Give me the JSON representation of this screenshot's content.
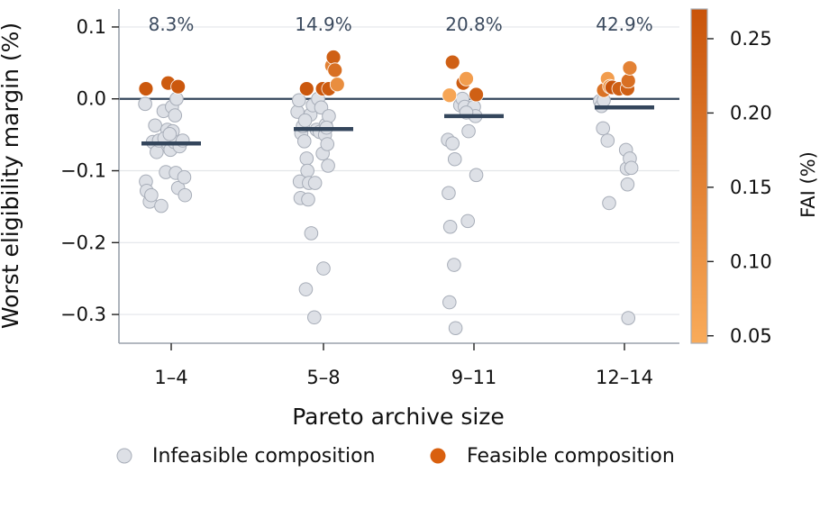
{
  "chart_data": {
    "type": "scatter",
    "xlabel": "Pareto archive size",
    "ylabel": "Worst eligibility margin (%)",
    "categories": [
      "1–4",
      "5–8",
      "9–11",
      "12–14"
    ],
    "ylim": [
      -0.34,
      0.125
    ],
    "yticks": [
      0.1,
      0.0,
      -0.1,
      -0.2,
      -0.3
    ],
    "ytick_labels": [
      "0.1",
      "0.0",
      "−0.1",
      "−0.2",
      "−0.3"
    ],
    "grid": "horizontal",
    "reference_line_y": 0.0,
    "annotations": [
      "8.3%",
      "14.9%",
      "20.8%",
      "42.9%"
    ],
    "medians": [
      -0.062,
      -0.042,
      -0.024,
      -0.012
    ],
    "colorbar": {
      "label": "FAI (%)",
      "range": [
        0.045,
        0.27
      ],
      "ticks": [
        0.25,
        0.2,
        0.15,
        0.1,
        0.05
      ],
      "tick_labels": [
        "0.25",
        "0.20",
        "0.15",
        "0.10",
        "0.05"
      ],
      "color_low": "#f9ab5a",
      "color_high": "#c9540a"
    },
    "legend": {
      "placement": "bottom",
      "items": [
        {
          "label": "Infeasible composition",
          "color": "#dde0e6"
        },
        {
          "label": "Feasible composition",
          "color": "#d9600f"
        }
      ]
    },
    "infeasible": [
      {
        "group": 0,
        "offset": -0.34,
        "y": -0.007
      },
      {
        "group": 0,
        "offset": -0.33,
        "y": -0.115
      },
      {
        "group": 0,
        "offset": -0.32,
        "y": -0.128
      },
      {
        "group": 0,
        "offset": -0.28,
        "y": -0.143
      },
      {
        "group": 0,
        "offset": -0.26,
        "y": -0.134
      },
      {
        "group": 0,
        "offset": -0.24,
        "y": -0.06
      },
      {
        "group": 0,
        "offset": -0.21,
        "y": -0.037
      },
      {
        "group": 0,
        "offset": -0.19,
        "y": -0.074
      },
      {
        "group": 0,
        "offset": -0.16,
        "y": -0.058
      },
      {
        "group": 0,
        "offset": -0.13,
        "y": -0.149
      },
      {
        "group": 0,
        "offset": -0.1,
        "y": -0.017
      },
      {
        "group": 0,
        "offset": -0.07,
        "y": -0.102
      },
      {
        "group": 0,
        "offset": -0.05,
        "y": -0.043
      },
      {
        "group": 0,
        "offset": -0.04,
        "y": -0.062
      },
      {
        "group": 0,
        "offset": -0.01,
        "y": -0.071
      },
      {
        "group": 0,
        "offset": 0.01,
        "y": -0.011
      },
      {
        "group": 0,
        "offset": 0.02,
        "y": -0.045
      },
      {
        "group": 0,
        "offset": 0.04,
        "y": -0.06
      },
      {
        "group": 0,
        "offset": 0.05,
        "y": -0.023
      },
      {
        "group": 0,
        "offset": 0.06,
        "y": -0.103
      },
      {
        "group": 0,
        "offset": 0.07,
        "y": 0.0
      },
      {
        "group": 0,
        "offset": 0.09,
        "y": -0.124
      },
      {
        "group": 0,
        "offset": 0.11,
        "y": -0.066
      },
      {
        "group": 0,
        "offset": 0.15,
        "y": -0.058
      },
      {
        "group": 0,
        "offset": 0.17,
        "y": -0.109
      },
      {
        "group": 0,
        "offset": 0.18,
        "y": -0.134
      },
      {
        "group": 0,
        "offset": -0.09,
        "y": -0.055
      },
      {
        "group": 0,
        "offset": -0.02,
        "y": -0.049
      },
      {
        "group": 1,
        "offset": -0.34,
        "y": -0.018
      },
      {
        "group": 1,
        "offset": -0.32,
        "y": -0.002
      },
      {
        "group": 1,
        "offset": -0.31,
        "y": -0.115
      },
      {
        "group": 1,
        "offset": -0.3,
        "y": -0.138
      },
      {
        "group": 1,
        "offset": -0.29,
        "y": -0.048
      },
      {
        "group": 1,
        "offset": -0.27,
        "y": -0.038
      },
      {
        "group": 1,
        "offset": -0.25,
        "y": -0.059
      },
      {
        "group": 1,
        "offset": -0.23,
        "y": -0.265
      },
      {
        "group": 1,
        "offset": -0.22,
        "y": -0.083
      },
      {
        "group": 1,
        "offset": -0.21,
        "y": -0.1
      },
      {
        "group": 1,
        "offset": -0.2,
        "y": -0.14
      },
      {
        "group": 1,
        "offset": -0.19,
        "y": -0.117
      },
      {
        "group": 1,
        "offset": -0.17,
        "y": -0.022
      },
      {
        "group": 1,
        "offset": -0.16,
        "y": -0.187
      },
      {
        "group": 1,
        "offset": -0.14,
        "y": -0.009
      },
      {
        "group": 1,
        "offset": -0.12,
        "y": -0.304
      },
      {
        "group": 1,
        "offset": -0.11,
        "y": -0.117
      },
      {
        "group": 1,
        "offset": -0.09,
        "y": -0.043
      },
      {
        "group": 1,
        "offset": -0.07,
        "y": 0.0
      },
      {
        "group": 1,
        "offset": -0.05,
        "y": -0.046
      },
      {
        "group": 1,
        "offset": -0.03,
        "y": -0.012
      },
      {
        "group": 1,
        "offset": -0.01,
        "y": -0.076
      },
      {
        "group": 1,
        "offset": 0.0,
        "y": -0.236
      },
      {
        "group": 1,
        "offset": 0.02,
        "y": -0.05
      },
      {
        "group": 1,
        "offset": 0.03,
        "y": -0.036
      },
      {
        "group": 1,
        "offset": 0.05,
        "y": -0.063
      },
      {
        "group": 1,
        "offset": 0.06,
        "y": -0.093
      },
      {
        "group": 1,
        "offset": 0.07,
        "y": -0.024
      },
      {
        "group": 1,
        "offset": 0.04,
        "y": -0.04
      },
      {
        "group": 1,
        "offset": -0.24,
        "y": -0.03
      },
      {
        "group": 2,
        "offset": -0.34,
        "y": -0.057
      },
      {
        "group": 2,
        "offset": -0.33,
        "y": -0.131
      },
      {
        "group": 2,
        "offset": -0.32,
        "y": -0.283
      },
      {
        "group": 2,
        "offset": -0.31,
        "y": -0.178
      },
      {
        "group": 2,
        "offset": -0.28,
        "y": -0.062
      },
      {
        "group": 2,
        "offset": -0.26,
        "y": -0.231
      },
      {
        "group": 2,
        "offset": -0.25,
        "y": -0.084
      },
      {
        "group": 2,
        "offset": -0.24,
        "y": -0.319
      },
      {
        "group": 2,
        "offset": -0.18,
        "y": -0.009
      },
      {
        "group": 2,
        "offset": -0.15,
        "y": 0.0
      },
      {
        "group": 2,
        "offset": -0.12,
        "y": -0.011
      },
      {
        "group": 2,
        "offset": -0.08,
        "y": -0.17
      },
      {
        "group": 2,
        "offset": -0.07,
        "y": -0.045
      },
      {
        "group": 2,
        "offset": -0.02,
        "y": -0.02
      },
      {
        "group": 2,
        "offset": 0.0,
        "y": -0.011
      },
      {
        "group": 2,
        "offset": 0.02,
        "y": -0.024
      },
      {
        "group": 2,
        "offset": 0.03,
        "y": -0.106
      },
      {
        "group": 2,
        "offset": -0.1,
        "y": -0.019
      },
      {
        "group": 3,
        "offset": -0.32,
        "y": -0.003
      },
      {
        "group": 3,
        "offset": -0.3,
        "y": -0.01
      },
      {
        "group": 3,
        "offset": -0.28,
        "y": -0.041
      },
      {
        "group": 3,
        "offset": -0.27,
        "y": -0.002
      },
      {
        "group": 3,
        "offset": -0.22,
        "y": -0.058
      },
      {
        "group": 3,
        "offset": -0.2,
        "y": -0.145
      },
      {
        "group": 3,
        "offset": 0.02,
        "y": -0.071
      },
      {
        "group": 3,
        "offset": 0.03,
        "y": -0.097
      },
      {
        "group": 3,
        "offset": 0.04,
        "y": -0.119
      },
      {
        "group": 3,
        "offset": 0.05,
        "y": -0.305
      },
      {
        "group": 3,
        "offset": 0.07,
        "y": -0.083
      },
      {
        "group": 3,
        "offset": 0.09,
        "y": -0.096
      }
    ],
    "feasible": [
      {
        "group": 0,
        "offset": -0.33,
        "y": 0.014,
        "fai": 0.26
      },
      {
        "group": 0,
        "offset": -0.04,
        "y": 0.022,
        "fai": 0.25
      },
      {
        "group": 0,
        "offset": 0.09,
        "y": 0.017,
        "fai": 0.26
      },
      {
        "group": 1,
        "offset": -0.22,
        "y": 0.014,
        "fai": 0.26
      },
      {
        "group": 1,
        "offset": -0.01,
        "y": 0.014,
        "fai": 0.26
      },
      {
        "group": 1,
        "offset": 0.07,
        "y": 0.014,
        "fai": 0.25
      },
      {
        "group": 1,
        "offset": 0.11,
        "y": 0.046,
        "fai": 0.15
      },
      {
        "group": 1,
        "offset": 0.13,
        "y": 0.058,
        "fai": 0.24
      },
      {
        "group": 1,
        "offset": 0.15,
        "y": 0.04,
        "fai": 0.2
      },
      {
        "group": 1,
        "offset": 0.18,
        "y": 0.02,
        "fai": 0.12
      },
      {
        "group": 2,
        "offset": -0.32,
        "y": 0.005,
        "fai": 0.06
      },
      {
        "group": 2,
        "offset": -0.28,
        "y": 0.051,
        "fai": 0.24
      },
      {
        "group": 2,
        "offset": -0.14,
        "y": 0.022,
        "fai": 0.25
      },
      {
        "group": 2,
        "offset": -0.1,
        "y": 0.028,
        "fai": 0.08
      },
      {
        "group": 2,
        "offset": 0.03,
        "y": 0.006,
        "fai": 0.24
      },
      {
        "group": 3,
        "offset": -0.27,
        "y": 0.012,
        "fai": 0.19
      },
      {
        "group": 3,
        "offset": -0.22,
        "y": 0.028,
        "fai": 0.08
      },
      {
        "group": 3,
        "offset": -0.19,
        "y": 0.017,
        "fai": 0.1
      },
      {
        "group": 3,
        "offset": -0.16,
        "y": 0.016,
        "fai": 0.27
      },
      {
        "group": 3,
        "offset": -0.07,
        "y": 0.014,
        "fai": 0.24
      },
      {
        "group": 3,
        "offset": 0.04,
        "y": 0.014,
        "fai": 0.24
      },
      {
        "group": 3,
        "offset": 0.05,
        "y": 0.025,
        "fai": 0.2
      },
      {
        "group": 3,
        "offset": 0.07,
        "y": 0.043,
        "fai": 0.15
      }
    ]
  }
}
